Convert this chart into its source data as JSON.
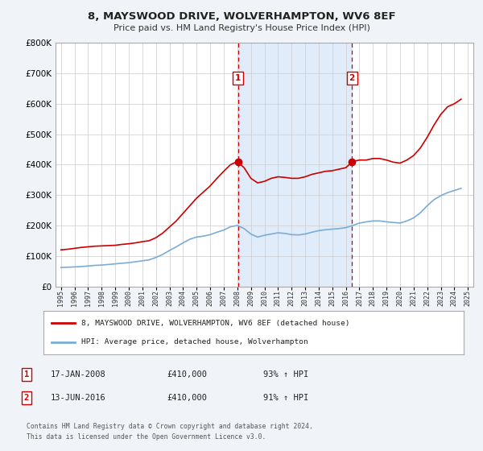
{
  "title": "8, MAYSWOOD DRIVE, WOLVERHAMPTON, WV6 8EF",
  "subtitle": "Price paid vs. HM Land Registry's House Price Index (HPI)",
  "bg_color": "#f0f4f8",
  "plot_bg_color": "#ffffff",
  "red_color": "#cc0000",
  "blue_color": "#7aacd6",
  "marker_color": "#cc0000",
  "vline_color": "#cc0000",
  "annotation_box_color": "#cc0000",
  "annotation_text_color": "#cc0000",
  "ylim": [
    0,
    800000
  ],
  "ytick_labels": [
    "£0",
    "£100K",
    "£200K",
    "£300K",
    "£400K",
    "£500K",
    "£600K",
    "£700K",
    "£800K"
  ],
  "ytick_values": [
    0,
    100000,
    200000,
    300000,
    400000,
    500000,
    600000,
    700000,
    800000
  ],
  "xlabel_years": [
    "1995",
    "1996",
    "1997",
    "1998",
    "1999",
    "2000",
    "2001",
    "2002",
    "2003",
    "2004",
    "2005",
    "2006",
    "2007",
    "2008",
    "2009",
    "2010",
    "2011",
    "2012",
    "2013",
    "2014",
    "2015",
    "2016",
    "2017",
    "2018",
    "2019",
    "2020",
    "2021",
    "2022",
    "2023",
    "2024",
    "2025"
  ],
  "xlim_min": 1994.6,
  "xlim_max": 2025.4,
  "vline1_x": 2008.05,
  "vline2_x": 2016.45,
  "marker1_x": 2008.05,
  "marker1_y": 410000,
  "marker2_x": 2016.45,
  "marker2_y": 410000,
  "legend_label_red": "8, MAYSWOOD DRIVE, WOLVERHAMPTON, WV6 8EF (detached house)",
  "legend_label_blue": "HPI: Average price, detached house, Wolverhampton",
  "sale1_label": "1",
  "sale1_date": "17-JAN-2008",
  "sale1_price": "£410,000",
  "sale1_hpi": "93% ↑ HPI",
  "sale2_label": "2",
  "sale2_date": "13-JUN-2016",
  "sale2_price": "£410,000",
  "sale2_hpi": "91% ↑ HPI",
  "footer": "Contains HM Land Registry data © Crown copyright and database right 2024.\nThis data is licensed under the Open Government Licence v3.0.",
  "hpi_red_x": [
    1995.0,
    1995.5,
    1996.0,
    1996.5,
    1997.0,
    1997.5,
    1998.0,
    1998.5,
    1999.0,
    1999.5,
    2000.0,
    2000.5,
    2001.0,
    2001.5,
    2002.0,
    2002.5,
    2003.0,
    2003.5,
    2004.0,
    2004.5,
    2005.0,
    2005.5,
    2006.0,
    2006.5,
    2007.0,
    2007.5,
    2008.0,
    2008.5,
    2009.0,
    2009.5,
    2010.0,
    2010.5,
    2011.0,
    2011.5,
    2012.0,
    2012.5,
    2013.0,
    2013.5,
    2014.0,
    2014.5,
    2015.0,
    2015.5,
    2016.0,
    2016.5,
    2017.0,
    2017.5,
    2018.0,
    2018.5,
    2019.0,
    2019.5,
    2020.0,
    2020.5,
    2021.0,
    2021.5,
    2022.0,
    2022.5,
    2023.0,
    2023.5,
    2024.0,
    2024.5
  ],
  "hpi_red_y": [
    120000,
    122000,
    125000,
    128000,
    130000,
    132000,
    133000,
    134000,
    135000,
    138000,
    140000,
    143000,
    147000,
    150000,
    160000,
    175000,
    195000,
    215000,
    240000,
    265000,
    290000,
    310000,
    330000,
    355000,
    378000,
    400000,
    410000,
    390000,
    355000,
    340000,
    345000,
    355000,
    360000,
    358000,
    355000,
    355000,
    360000,
    368000,
    373000,
    378000,
    380000,
    385000,
    390000,
    410000,
    415000,
    415000,
    420000,
    420000,
    415000,
    408000,
    405000,
    415000,
    430000,
    455000,
    490000,
    530000,
    565000,
    590000,
    600000,
    615000
  ],
  "hpi_blue_x": [
    1995.0,
    1995.5,
    1996.0,
    1996.5,
    1997.0,
    1997.5,
    1998.0,
    1998.5,
    1999.0,
    1999.5,
    2000.0,
    2000.5,
    2001.0,
    2001.5,
    2002.0,
    2002.5,
    2003.0,
    2003.5,
    2004.0,
    2004.5,
    2005.0,
    2005.5,
    2006.0,
    2006.5,
    2007.0,
    2007.5,
    2008.0,
    2008.5,
    2009.0,
    2009.5,
    2010.0,
    2010.5,
    2011.0,
    2011.5,
    2012.0,
    2012.5,
    2013.0,
    2013.5,
    2014.0,
    2014.5,
    2015.0,
    2015.5,
    2016.0,
    2016.5,
    2017.0,
    2017.5,
    2018.0,
    2018.5,
    2019.0,
    2019.5,
    2020.0,
    2020.5,
    2021.0,
    2021.5,
    2022.0,
    2022.5,
    2023.0,
    2023.5,
    2024.0,
    2024.5
  ],
  "hpi_blue_y": [
    62000,
    63000,
    64000,
    65000,
    67000,
    69000,
    70000,
    72000,
    74000,
    76000,
    78000,
    81000,
    84000,
    87000,
    95000,
    105000,
    118000,
    130000,
    143000,
    155000,
    162000,
    165000,
    170000,
    178000,
    185000,
    196000,
    200000,
    190000,
    172000,
    162000,
    168000,
    172000,
    176000,
    174000,
    170000,
    169000,
    172000,
    178000,
    183000,
    186000,
    188000,
    190000,
    193000,
    200000,
    208000,
    212000,
    215000,
    215000,
    212000,
    210000,
    208000,
    215000,
    225000,
    242000,
    265000,
    285000,
    298000,
    308000,
    315000,
    322000
  ]
}
